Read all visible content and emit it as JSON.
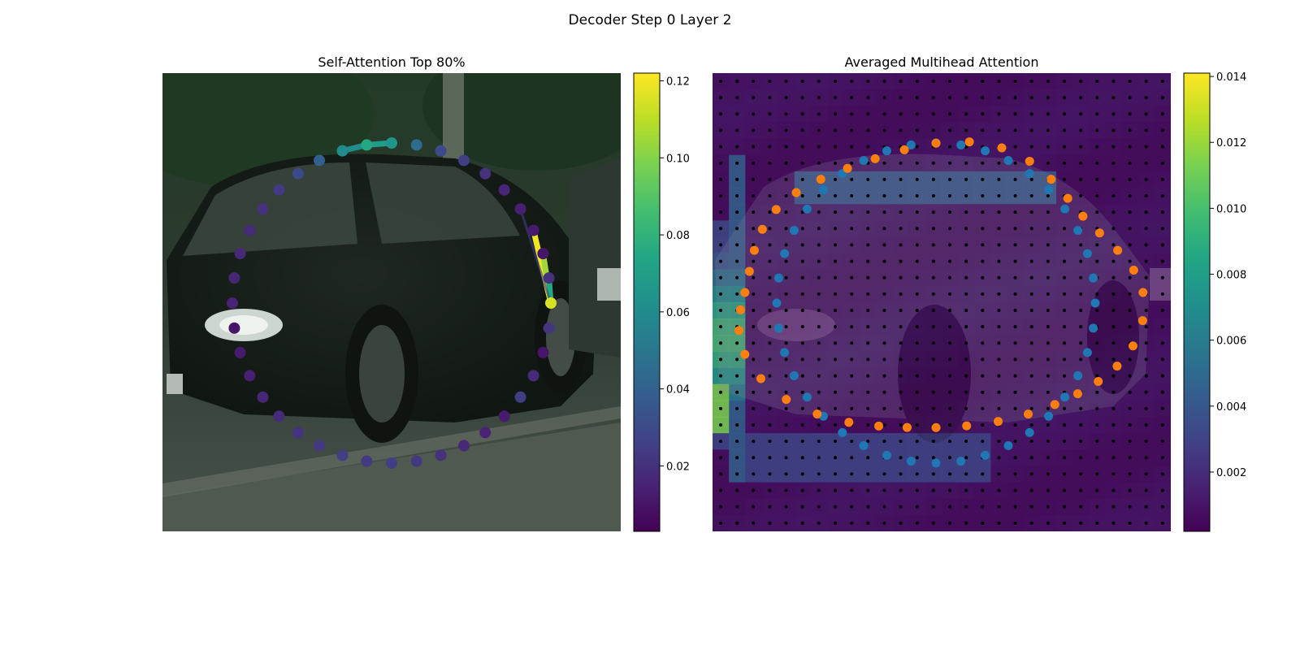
{
  "figure": {
    "suptitle": "Decoder Step 0 Layer 2"
  },
  "chart_data": [
    {
      "type": "scatter",
      "title": "Self-Attention Top 80%",
      "background": "photo: dark sedan car on street",
      "colormap": "viridis",
      "colorbar": {
        "ticks": [
          "0.02",
          "0.04",
          "0.06",
          "0.08",
          "0.10",
          "0.12"
        ],
        "range": [
          0.003,
          0.122
        ]
      },
      "point_weights": [
        0.115,
        0.022,
        0.01,
        0.018,
        0.025,
        0.012,
        0.015,
        0.017,
        0.02,
        0.023,
        0.025,
        0.024,
        0.025,
        0.023,
        0.021,
        0.018,
        0.016,
        0.014,
        0.012,
        0.01,
        0.015,
        0.016,
        0.017,
        0.018,
        0.02,
        0.024,
        0.03,
        0.04,
        0.06,
        0.075,
        0.065,
        0.045,
        0.03,
        0.025,
        0.02,
        0.016,
        0.014,
        0.012,
        0.01,
        0.02
      ],
      "attention_lines": [
        {
          "from": 0,
          "to": 37,
          "weight": 0.12
        },
        {
          "from": 0,
          "to": 38,
          "weight": 0.105
        },
        {
          "from": 0,
          "to": 39,
          "weight": 0.075
        },
        {
          "from": 0,
          "to": 36,
          "weight": 0.025
        },
        {
          "from": 28,
          "to": 29,
          "weight": 0.06
        },
        {
          "from": 29,
          "to": 30,
          "weight": 0.07
        }
      ]
    },
    {
      "type": "heatmap",
      "title": "Averaged Multihead Attention",
      "colormap": "viridis",
      "colorbar": {
        "ticks": [
          "0.002",
          "0.004",
          "0.006",
          "0.008",
          "0.010",
          "0.012",
          "0.014"
        ],
        "range": [
          0.0002,
          0.0141
        ]
      },
      "grid_dots": "28 x 28 black reference points",
      "series": [
        {
          "color": "#1f77b4",
          "marker": "inner contour points"
        },
        {
          "color": "#ff7f0e",
          "marker": "outer contour points"
        }
      ]
    }
  ]
}
